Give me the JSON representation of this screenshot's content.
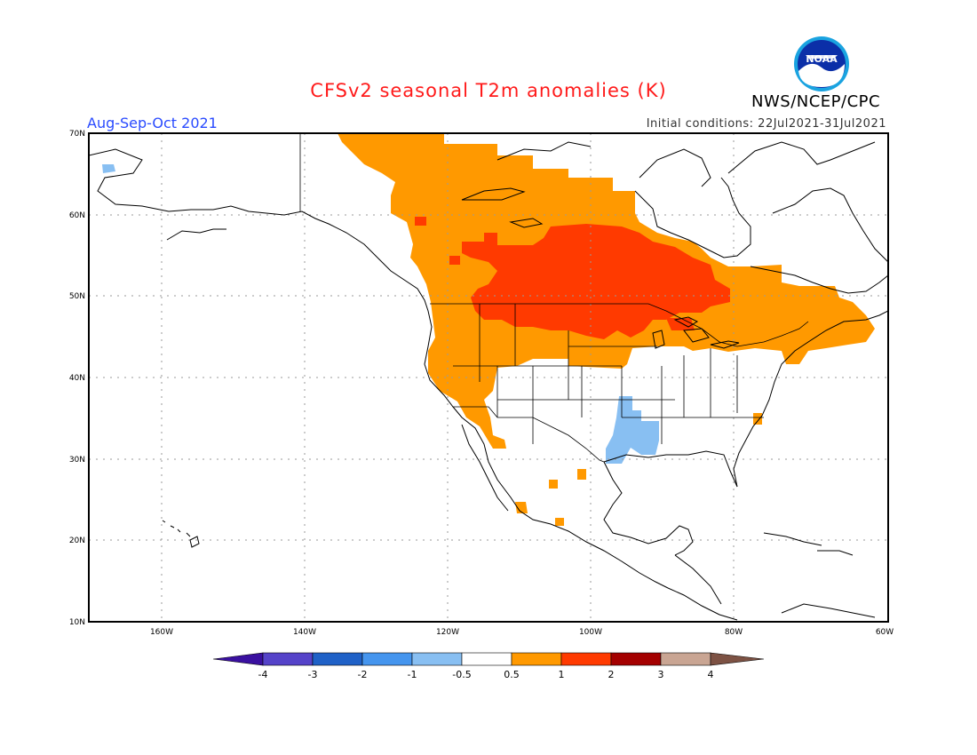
{
  "header": {
    "title": "CFSv2 seasonal T2m anomalies (K)",
    "period": "Aug-Sep-Oct 2021",
    "initial_conditions": "Initial conditions: 22Jul2021-31Jul2021",
    "agency": "NWS/NCEP/CPC",
    "logo_text": "NOAA"
  },
  "map": {
    "projection": "lat-lon",
    "lat_range": [
      10,
      70
    ],
    "lon_range": [
      -172,
      -60
    ],
    "lat_ticks": [
      "70N",
      "60N",
      "50N",
      "40N",
      "30N",
      "20N",
      "10N"
    ],
    "lon_ticks": [
      "160W",
      "140W",
      "120W",
      "100W",
      "80W",
      "60W"
    ],
    "grid": "dotted"
  },
  "colorbar": {
    "labels": [
      "-4",
      "-3",
      "-2",
      "-1",
      "-0.5",
      "0.5",
      "1",
      "2",
      "3",
      "4"
    ],
    "colors": [
      "#3a10a0",
      "#5543c9",
      "#1f61c7",
      "#4595ee",
      "#88bff2",
      "#ffffff",
      "#ff9900",
      "#ff3a00",
      "#a40000",
      "#c9a593",
      "#7d5244"
    ]
  },
  "icons": {
    "logo": "noaa-logo-icon"
  }
}
